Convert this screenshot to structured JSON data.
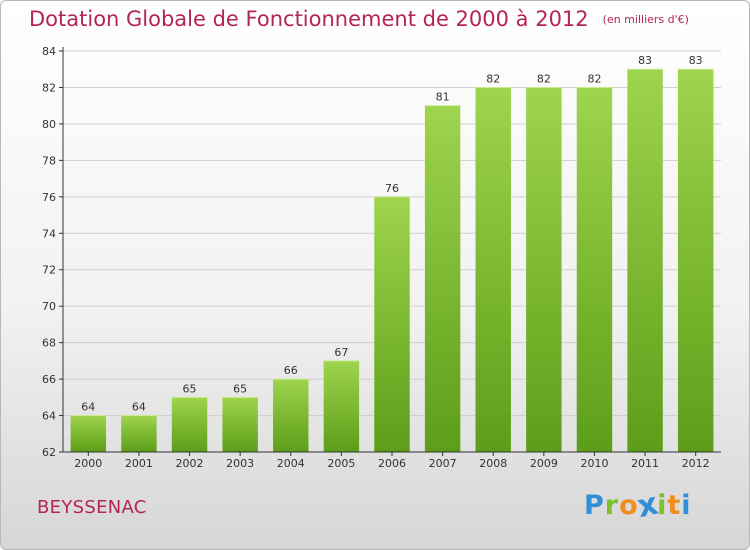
{
  "title": "Dotation Globale de Fonctionnement de 2000 à 2012",
  "subtitle": "(en milliers d'€)",
  "place": "BEYSSENAC",
  "logo": {
    "text": "Proxiti",
    "letters": [
      {
        "char": "P",
        "color": "#2f8fd8"
      },
      {
        "char": "r",
        "color": "#7bbf2a"
      },
      {
        "char": "o",
        "color": "#f28c1c"
      },
      {
        "char": "x",
        "color": "#2f8fd8"
      },
      {
        "char": "i",
        "color": "#7bbf2a"
      },
      {
        "char": "t",
        "color": "#f28c1c"
      },
      {
        "char": "i",
        "color": "#2f8fd8"
      }
    ]
  },
  "colors": {
    "title": "#b4245a",
    "bar_top": "#9fd44e",
    "bar_bottom": "#5c9e18",
    "grid": "#cfcfcf",
    "axis": "#333333"
  },
  "chart_data": {
    "type": "bar",
    "categories": [
      "2000",
      "2001",
      "2002",
      "2003",
      "2004",
      "2005",
      "2006",
      "2007",
      "2008",
      "2009",
      "2010",
      "2011",
      "2012"
    ],
    "values": [
      64,
      64,
      65,
      65,
      66,
      67,
      76,
      81,
      82,
      82,
      82,
      83,
      83
    ],
    "ylim": [
      62,
      84
    ],
    "yticks": [
      62,
      64,
      66,
      68,
      70,
      72,
      74,
      76,
      78,
      80,
      82,
      84
    ],
    "grid": true,
    "xlabel": "",
    "ylabel": ""
  }
}
